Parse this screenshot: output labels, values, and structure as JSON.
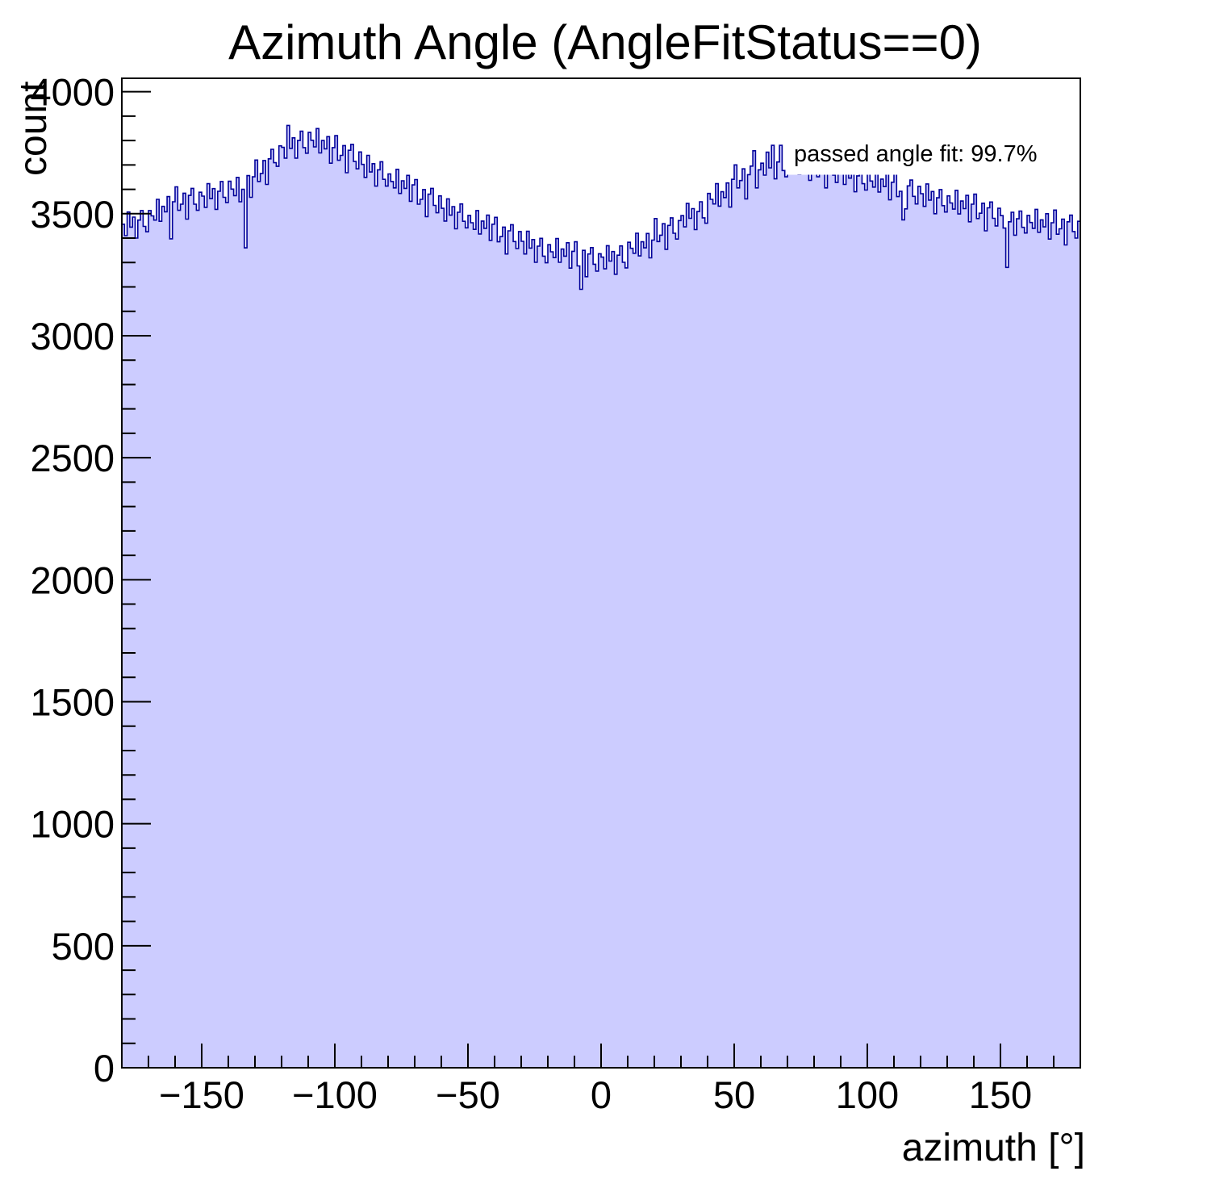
{
  "page": {
    "background": "#ffffff"
  },
  "chart_data": {
    "type": "histogram",
    "title": "Azimuth Angle (AngleFitStatus==0)",
    "xlabel": "azimuth [°]",
    "ylabel": "count",
    "annotation": "passed angle fit: 99.7%",
    "legend_position": "none",
    "grid": false,
    "xlim": [
      -180,
      180
    ],
    "ylim": [
      0,
      4055
    ],
    "bin_width": 1,
    "first_bin_left_edge": -180,
    "x_tick_values": [
      -150,
      -100,
      -50,
      0,
      50,
      100,
      150
    ],
    "x_tick_labels": [
      "−150",
      "−100",
      "−50",
      "0",
      "50",
      "100",
      "150"
    ],
    "x_minor_tick_step": 10,
    "y_tick_values": [
      0,
      500,
      1000,
      1500,
      2000,
      2500,
      3000,
      3500,
      4000
    ],
    "y_tick_labels": [
      "0",
      "500",
      "1000",
      "1500",
      "2000",
      "2500",
      "3000",
      "3500",
      "4000"
    ],
    "y_minor_tick_step": 100,
    "fill_color": "#ccccff",
    "line_color": "#000099",
    "frame_color": "#000000",
    "annotation_box_color": "#ffffff",
    "values": [
      3457,
      3410,
      3507,
      3445,
      3486,
      3400,
      3474,
      3513,
      3448,
      3426,
      3513,
      3491,
      3474,
      3559,
      3469,
      3530,
      3508,
      3570,
      3397,
      3549,
      3610,
      3514,
      3539,
      3584,
      3478,
      3575,
      3604,
      3539,
      3514,
      3588,
      3572,
      3526,
      3623,
      3562,
      3603,
      3518,
      3592,
      3632,
      3567,
      3546,
      3633,
      3601,
      3574,
      3649,
      3549,
      3600,
      3360,
      3656,
      3567,
      3651,
      3720,
      3632,
      3665,
      3718,
      3620,
      3725,
      3764,
      3709,
      3694,
      3778,
      3772,
      3728,
      3862,
      3768,
      3811,
      3728,
      3800,
      3838,
      3771,
      3748,
      3833,
      3801,
      3774,
      3849,
      3749,
      3800,
      3766,
      3816,
      3707,
      3771,
      3820,
      3719,
      3739,
      3779,
      3668,
      3760,
      3784,
      3714,
      3684,
      3753,
      3702,
      3649,
      3739,
      3671,
      3705,
      3613,
      3680,
      3713,
      3641,
      3613,
      3663,
      3632,
      3606,
      3682,
      3583,
      3635,
      3604,
      3657,
      3551,
      3618,
      3640,
      3539,
      3559,
      3599,
      3488,
      3580,
      3604,
      3534,
      3504,
      3573,
      3522,
      3470,
      3561,
      3494,
      3529,
      3438,
      3506,
      3540,
      3469,
      3442,
      3493,
      3463,
      3436,
      3513,
      3417,
      3470,
      3440,
      3494,
      3391,
      3457,
      3485,
      3385,
      3406,
      3445,
      3335,
      3430,
      3455,
      3386,
      3357,
      3427,
      3387,
      3335,
      3428,
      3359,
      3394,
      3301,
      3367,
      3399,
      3326,
      3299,
      3373,
      3344,
      3320,
      3398,
      3301,
      3355,
      3326,
      3381,
      3277,
      3346,
      3385,
      3286,
      3190,
      3350,
      3242,
      3335,
      3361,
      3293,
      3265,
      3336,
      3322,
      3274,
      3369,
      3306,
      3345,
      3252,
      3330,
      3368,
      3301,
      3278,
      3383,
      3358,
      3338,
      3420,
      3327,
      3385,
      3360,
      3419,
      3319,
      3392,
      3480,
      3386,
      3412,
      3459,
      3354,
      3452,
      3483,
      3420,
      3396,
      3472,
      3492,
      3446,
      3542,
      3481,
      3521,
      3435,
      3509,
      3549,
      3483,
      3461,
      3583,
      3559,
      3540,
      3623,
      3531,
      3590,
      3566,
      3626,
      3527,
      3641,
      3700,
      3606,
      3636,
      3684,
      3561,
      3660,
      3695,
      3758,
      3606,
      3680,
      3707,
      3658,
      3752,
      3688,
      3780,
      3643,
      3712,
      3780,
      3677,
      3651,
      3733,
      3704,
      3679,
      3758,
      3661,
      3715,
      3686,
      3741,
      3637,
      3706,
      3750,
      3651,
      3673,
      3715,
      3606,
      3700,
      3725,
      3658,
      3628,
      3701,
      3672,
      3620,
      3712,
      3646,
      3681,
      3590,
      3655,
      3689,
      3623,
      3597,
      3663,
      3634,
      3609,
      3686,
      3589,
      3642,
      3611,
      3665,
      3557,
      3629,
      3670,
      3570,
      3592,
      3475,
      3520,
      3614,
      3638,
      3571,
      3540,
      3612,
      3582,
      3530,
      3622,
      3556,
      3591,
      3500,
      3565,
      3599,
      3533,
      3507,
      3573,
      3544,
      3519,
      3596,
      3499,
      3552,
      3521,
      3575,
      3467,
      3539,
      3580,
      3480,
      3502,
      3543,
      3430,
      3524,
      3548,
      3481,
      3450,
      3522,
      3492,
      3441,
      3280,
      3467,
      3506,
      3412,
      3479,
      3511,
      3444,
      3421,
      3493,
      3464,
      3440,
      3518,
      3424,
      3475,
      3446,
      3500,
      3396,
      3463,
      3515,
      3416,
      3438,
      3478,
      3372,
      3467,
      3494,
      3427,
      3400,
      3469
    ]
  }
}
